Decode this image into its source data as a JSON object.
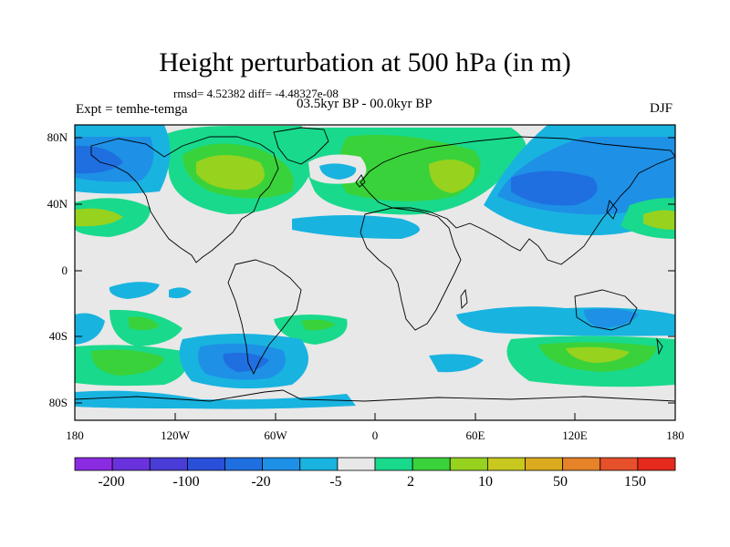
{
  "title": "Height perturbation at 500 hPa (in m)",
  "stats": "rmsd= 4.52382 diff= -4.48327e-08",
  "expt": "Expt = temhe-temga",
  "period": "03.5kyr BP - 00.0kyr BP",
  "season": "DJF",
  "lat_labels": [
    "80N",
    "40N",
    "0",
    "40S",
    "80S"
  ],
  "lon_labels": [
    "180",
    "120W",
    "60W",
    "0",
    "60E",
    "120E",
    "180"
  ],
  "colorbar": {
    "colors": [
      "#8a2be2",
      "#6a32dc",
      "#4a3cd6",
      "#2a4fd8",
      "#1f6fe0",
      "#1e90e6",
      "#19b3e0",
      "#e8e8e8",
      "#19d98c",
      "#3ad23a",
      "#96d21e",
      "#c8c81e",
      "#dcaa1e",
      "#e68228",
      "#e6502a",
      "#e62a1e"
    ],
    "labels": [
      "-200",
      "-100",
      "-20",
      "-5",
      "2",
      "10",
      "50",
      "150"
    ]
  }
}
